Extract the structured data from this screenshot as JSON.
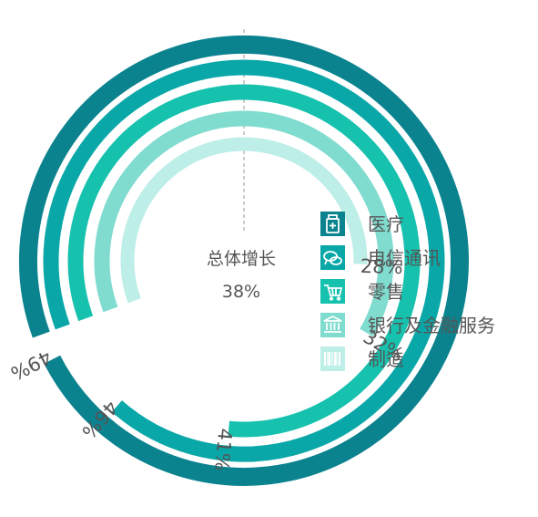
{
  "chart_data": {
    "type": "radial_bar",
    "center_label": "总体增长",
    "center_value": "38%",
    "series": [
      {
        "name": "医疗",
        "value": 49,
        "label": "49%",
        "color": "#0a838f",
        "icon": "medicine-bottle-icon"
      },
      {
        "name": "电信通讯",
        "value": 46,
        "label": "46%",
        "color": "#0aa7a9",
        "icon": "chat-bubbles-icon"
      },
      {
        "name": "零售",
        "value": 41,
        "label": "41%",
        "color": "#16c1ae",
        "icon": "shopping-cart-icon"
      },
      {
        "name": "银行及金融服务",
        "value": 32,
        "label": "32%",
        "color": "#7fdccf",
        "icon": "bank-building-icon"
      },
      {
        "name": "制造",
        "value": 28,
        "label": "28%",
        "color": "#bdeee7",
        "icon": "barcode-icon"
      }
    ]
  }
}
